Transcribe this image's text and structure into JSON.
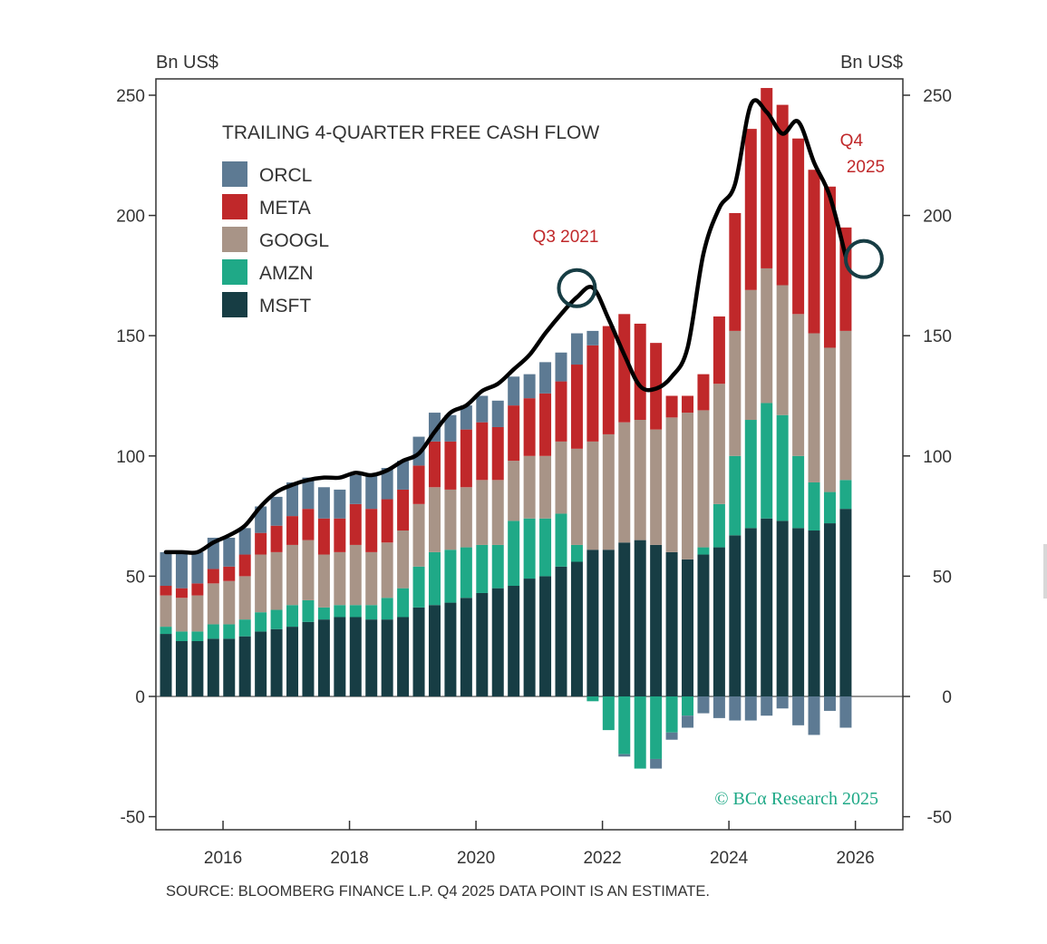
{
  "chart_data": {
    "type": "bar",
    "stacked": true,
    "title": "TRAILING 4-QUARTER FREE CASH FLOW",
    "ylabel_left": "Bn US$",
    "ylabel_right": "Bn US$",
    "ylim": [
      -50,
      250
    ],
    "yticks": [
      -50,
      0,
      50,
      100,
      150,
      200,
      250
    ],
    "xticks": [
      "2016",
      "2018",
      "2020",
      "2022",
      "2024",
      "2026"
    ],
    "source": "SOURCE: BLOOMBERG FINANCE L.P. Q4 2025 DATA POINT IS AN ESTIMATE.",
    "watermark": "© BCα Research 2025",
    "annotations": [
      {
        "text": "Q3 2021",
        "target": "2021Q3",
        "color": "#c0282a"
      },
      {
        "text": "Q4 2025",
        "target": "2025Q4",
        "color": "#c0282a"
      }
    ],
    "legend": {
      "placement": "top-left"
    },
    "colors": {
      "ORCL": "#5d7a93",
      "META": "#c0282a",
      "GOOGL": "#a89487",
      "AMZN": "#1fa987",
      "MSFT": "#173d44",
      "total_line": "#000000",
      "circle": "#173d44"
    },
    "categories": [
      "2015Q1",
      "2015Q2",
      "2015Q3",
      "2015Q4",
      "2016Q1",
      "2016Q2",
      "2016Q3",
      "2016Q4",
      "2017Q1",
      "2017Q2",
      "2017Q3",
      "2017Q4",
      "2018Q1",
      "2018Q2",
      "2018Q3",
      "2018Q4",
      "2019Q1",
      "2019Q2",
      "2019Q3",
      "2019Q4",
      "2020Q1",
      "2020Q2",
      "2020Q3",
      "2020Q4",
      "2021Q1",
      "2021Q2",
      "2021Q3",
      "2021Q4",
      "2022Q1",
      "2022Q2",
      "2022Q3",
      "2022Q4",
      "2023Q1",
      "2023Q2",
      "2023Q3",
      "2023Q4",
      "2024Q1",
      "2024Q2",
      "2024Q3",
      "2024Q4",
      "2025Q1",
      "2025Q2",
      "2025Q3",
      "2025Q4"
    ],
    "series": [
      {
        "name": "MSFT",
        "values": [
          26,
          23,
          23,
          24,
          24,
          25,
          27,
          28,
          29,
          31,
          32,
          33,
          33,
          32,
          32,
          33,
          37,
          38,
          39,
          41,
          43,
          45,
          46,
          49,
          50,
          54,
          56,
          61,
          61,
          64,
          65,
          63,
          60,
          57,
          59,
          62,
          67,
          70,
          74,
          73,
          70,
          69,
          72,
          78
        ]
      },
      {
        "name": "AMZN",
        "values": [
          3,
          4,
          4,
          6,
          6,
          7,
          8,
          8,
          9,
          9,
          5,
          5,
          5,
          6,
          9,
          12,
          17,
          22,
          22,
          21,
          20,
          18,
          27,
          25,
          24,
          22,
          7,
          -2,
          -14,
          -24,
          -30,
          -26,
          -15,
          -8,
          3,
          18,
          33,
          45,
          48,
          44,
          30,
          20,
          13,
          12
        ]
      },
      {
        "name": "GOOGL",
        "values": [
          13,
          14,
          15,
          17,
          18,
          18,
          24,
          24,
          25,
          25,
          22,
          22,
          25,
          22,
          23,
          24,
          26,
          27,
          25,
          25,
          27,
          27,
          25,
          26,
          26,
          30,
          40,
          45,
          48,
          50,
          50,
          48,
          56,
          61,
          57,
          50,
          52,
          54,
          56,
          54,
          59,
          62,
          60,
          62
        ]
      },
      {
        "name": "META",
        "values": [
          4,
          4,
          5,
          6,
          6,
          9,
          9,
          11,
          12,
          13,
          15,
          14,
          17,
          18,
          18,
          17,
          16,
          19,
          20,
          24,
          24,
          22,
          23,
          24,
          26,
          25,
          35,
          40,
          45,
          45,
          40,
          36,
          9,
          7,
          15,
          28,
          49,
          67,
          75,
          75,
          73,
          68,
          67,
          43
        ]
      },
      {
        "name": "ORCL",
        "values": [
          14,
          15,
          13,
          13,
          12,
          11,
          11,
          12,
          14,
          13,
          13,
          12,
          12,
          14,
          13,
          12,
          12,
          12,
          11,
          10,
          11,
          11,
          12,
          10,
          13,
          12,
          13,
          6,
          0,
          -1,
          0,
          -4,
          -3,
          -5,
          -7,
          -9,
          -10,
          -10,
          -8,
          -5,
          -12,
          -16,
          -6,
          -13
        ]
      }
    ],
    "total_line": [
      60,
      60,
      60,
      64,
      67,
      71,
      79,
      85,
      88,
      90,
      91,
      91,
      93,
      92,
      94,
      98,
      101,
      110,
      118,
      121,
      127,
      130,
      136,
      142,
      151,
      159,
      166,
      170,
      157,
      142,
      129,
      128,
      133,
      145,
      184,
      203,
      213,
      246,
      243,
      234,
      239,
      222,
      208,
      183
    ]
  }
}
